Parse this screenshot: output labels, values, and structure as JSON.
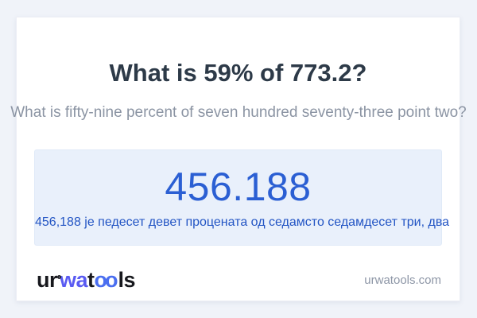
{
  "colors": {
    "background": "#f0f3f9",
    "card": "#ffffff",
    "title_text": "#2d3a48",
    "subtitle_text": "#8b94a3",
    "answer_box_bg": "#e9f0fb",
    "answer_blue": "#2b5fd3",
    "sentence_blue": "#2355c4",
    "logo_dark": "#17181d",
    "logo_indigo": "#5a5bf2",
    "logo_blue": "#4a6ef0",
    "footer_link_gray": "#8d96a6"
  },
  "header": {
    "title": "What is 59% of 773.2?",
    "subtitle": "What is fifty-nine percent of seven hundred seventy-three point two?"
  },
  "answer": {
    "value": "456.188",
    "sentence": "456,188 је педесет девет процената од седамсто седамдесет три, два"
  },
  "footer": {
    "logo": {
      "part_ur": "ur",
      "part_wa": "wa",
      "part_t": "t",
      "part_oo": "oo",
      "part_ls": "ls"
    },
    "site_link": "urwatools.com"
  }
}
